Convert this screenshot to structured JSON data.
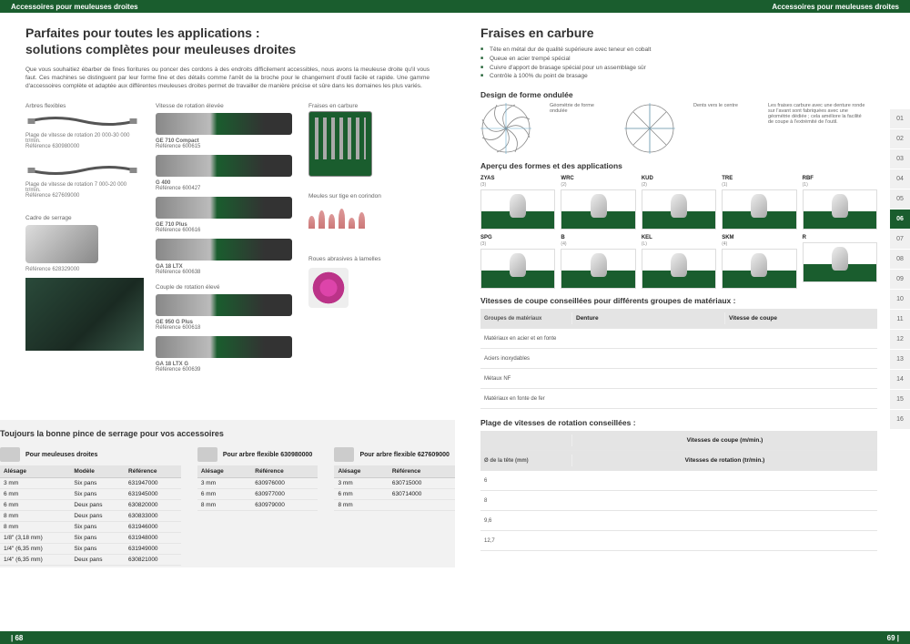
{
  "header": {
    "title": "Accessoires pour meuleuses droites"
  },
  "footer": {
    "left": "| 68",
    "right": "69 |"
  },
  "pageL": {
    "h1a": "Parfaites pour toutes les applications :",
    "h1b": "solutions complètes pour meuleuses droites",
    "intro": "Que vous souhaitiez ébarber de fines fioritures ou poncer des cordons à des endroits difficilement accessibles, nous avons la meuleuse droite qu'il vous faut. Ces machines se distinguent par leur forme fine et des détails comme l'arrêt de la broche pour le changement d'outil facile et rapide. Une gamme d'accessoires complète et adaptée aux différentes meuleuses droites permet de travailler de manière précise et sûre dans les domaines les plus variés.",
    "col1": {
      "arbres": "Arbres flexibles",
      "shaft1": "Plage de vitesse de rotation 20 000-30 000 tr/min.\nRéférence 630980000",
      "shaft2": "Plage de vitesse de rotation 7 000-20 000 tr/min.\nRéférence 627609000",
      "clamp": "Cadre de serrage",
      "clampref": "Référence 628329000"
    },
    "col2": {
      "title": "Vitesse de rotation élevée",
      "tools": [
        {
          "n": "GE 710 Compact",
          "r": "Référence 600615"
        },
        {
          "n": "G 400",
          "r": "Référence 600427"
        },
        {
          "n": "GE 710 Plus",
          "r": "Référence 600616"
        },
        {
          "n": "GA 18 LTX",
          "r": "Référence 600638"
        }
      ],
      "couple": "Couple de rotation élevé",
      "tools2": [
        {
          "n": "GE 950 G Plus",
          "r": "Référence 600618"
        },
        {
          "n": "GA 18 LTX G",
          "r": "Référence 600639"
        }
      ]
    },
    "col3": {
      "fraises": "Fraises en carbure",
      "meules": "Meules sur tige en corindon",
      "roues": "Roues abrasives à lamelles"
    },
    "collet": {
      "title": "Toujours la bonne pince de serrage pour vos accessoires",
      "h1": "Pour meuleuses droites",
      "h2": "Pour arbre flexible 630980000",
      "h3": "Pour arbre flexible 627609000",
      "cols1": [
        "Alésage",
        "Modèle",
        "Référence"
      ],
      "cols2": [
        "Alésage",
        "Référence"
      ],
      "t1": [
        [
          "3 mm",
          "Six pans",
          "631947000"
        ],
        [
          "6 mm",
          "Six pans",
          "631945000"
        ],
        [
          "6 mm",
          "Deux pans",
          "630820000"
        ],
        [
          "8 mm",
          "Deux pans",
          "630833000"
        ],
        [
          "8 mm",
          "Six pans",
          "631946000"
        ],
        [
          "1/8\" (3,18 mm)",
          "Six pans",
          "631948000"
        ],
        [
          "1/4\" (6,35 mm)",
          "Six pans",
          "631949000"
        ],
        [
          "1/4\" (6,35 mm)",
          "Deux pans",
          "630821000"
        ]
      ],
      "t2": [
        [
          "3 mm",
          "630976000"
        ],
        [
          "6 mm",
          "630977000"
        ],
        [
          "8 mm",
          "630979000"
        ]
      ],
      "t3": [
        [
          "3 mm",
          "630715000"
        ],
        [
          "6 mm",
          "630714000"
        ],
        [
          "8 mm",
          ""
        ]
      ]
    }
  },
  "pageR": {
    "h1": "Fraises en carbure",
    "bullets": [
      "Tête en métal dur de qualité supérieure avec teneur en cobalt",
      "Queue en acier trempé spécial",
      "Cuivre d'apport de brasage spécial pour un assemblage sûr",
      "Contrôle à 100% du point de brasage"
    ],
    "design": {
      "title": "Design de forme ondulée",
      "s1": "Géométrie de forme ondulée",
      "s2": "Dents vers le centre",
      "note": "Les fraises carbure avec une denture ronde sur l'avant sont fabriquées avec une géométrie dédiée ; cela améliore la facilité de coupe à l'extrémité de l'outil."
    },
    "formes": {
      "title": "Aperçu des formes et des applications",
      "row1": [
        {
          "c": "ZYAS",
          "s": "(3)"
        },
        {
          "c": "WRC",
          "s": "(2)"
        },
        {
          "c": "KUD",
          "s": "(2)"
        },
        {
          "c": "TRE",
          "s": "(1)"
        },
        {
          "c": "RBF",
          "s": "(1)"
        }
      ],
      "row2": [
        {
          "c": "SPG",
          "s": "(3)"
        },
        {
          "c": "B",
          "s": "(4)"
        },
        {
          "c": "KEL",
          "s": "(L)"
        },
        {
          "c": "SKM",
          "s": "(4)"
        },
        {
          "c": "R",
          "s": ""
        }
      ]
    },
    "vcoupe": {
      "title": "Vitesses de coupe conseillées pour différents groupes de matériaux :",
      "head": [
        "Groupes de matériaux",
        "Denture",
        "Vitesse de coupe"
      ],
      "rows": [
        "Matériaux en acier et en fonte",
        "Aciers inoxydables",
        "Métaux NF",
        "Matériaux en fonte de fer"
      ]
    },
    "vrot": {
      "title": "Plage de vitesses de rotation conseillées :",
      "h1": "Vitesses de coupe (m/min.)",
      "h2": "Ø de la tête (mm)",
      "h3": "Vitesses de rotation (tr/min.)",
      "dia": [
        "6",
        "8",
        "9,6",
        "12,7"
      ]
    },
    "tabs": [
      "01",
      "02",
      "03",
      "04",
      "05",
      "06",
      "07",
      "08",
      "09",
      "10",
      "11",
      "12",
      "13",
      "14",
      "15",
      "16"
    ],
    "active_tab": "06"
  },
  "colors": {
    "brand": "#1a5d2e",
    "grey": "#e4e4e4",
    "txt": "#555"
  }
}
